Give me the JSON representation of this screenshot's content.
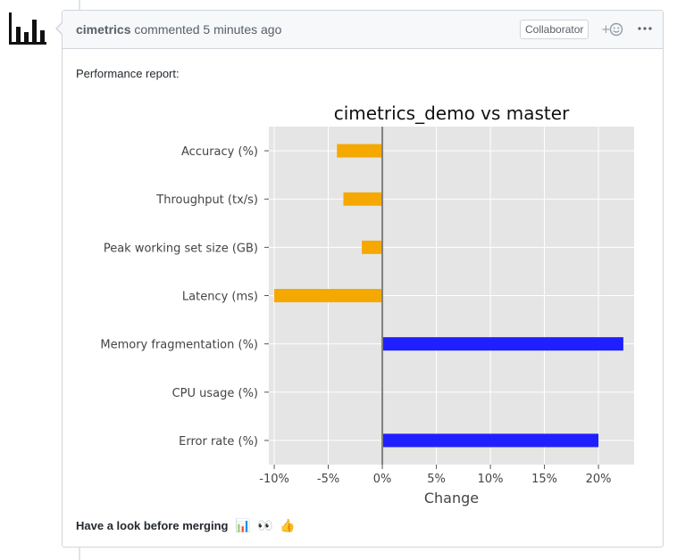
{
  "comment": {
    "author": "cimetrics",
    "action_text": "commented 5 minutes ago",
    "badge": "Collaborator",
    "reaction_icon": "smiley-plus-icon",
    "more_icon": "kebab-icon",
    "intro": "Performance report:",
    "outro": "Have a look before merging",
    "emojis": [
      "📊",
      "👀",
      "👍"
    ]
  },
  "colors": {
    "negative": "#f5a800",
    "positive": "#1f1fff",
    "plot_bg": "#e5e5e5",
    "zero_line": "#808080"
  },
  "chart_data": {
    "type": "bar",
    "orientation": "horizontal",
    "title": "cimetrics_demo vs master",
    "xlabel": "Change",
    "ylabel": "",
    "xlim": [
      -10.5,
      23.3
    ],
    "xticks": [
      -10,
      -5,
      0,
      5,
      10,
      15,
      20
    ],
    "xtick_labels": [
      "-10%",
      "-5%",
      "0%",
      "5%",
      "10%",
      "15%",
      "20%"
    ],
    "grid": true,
    "categories": [
      "Accuracy (%)",
      "Throughput (tx/s)",
      "Peak working set size (GB)",
      "Latency (ms)",
      "Memory fragmentation (%)",
      "CPU usage (%)",
      "Error rate (%)"
    ],
    "values": [
      -4.2,
      -3.6,
      -1.9,
      -10.0,
      22.3,
      0,
      20.0
    ]
  }
}
